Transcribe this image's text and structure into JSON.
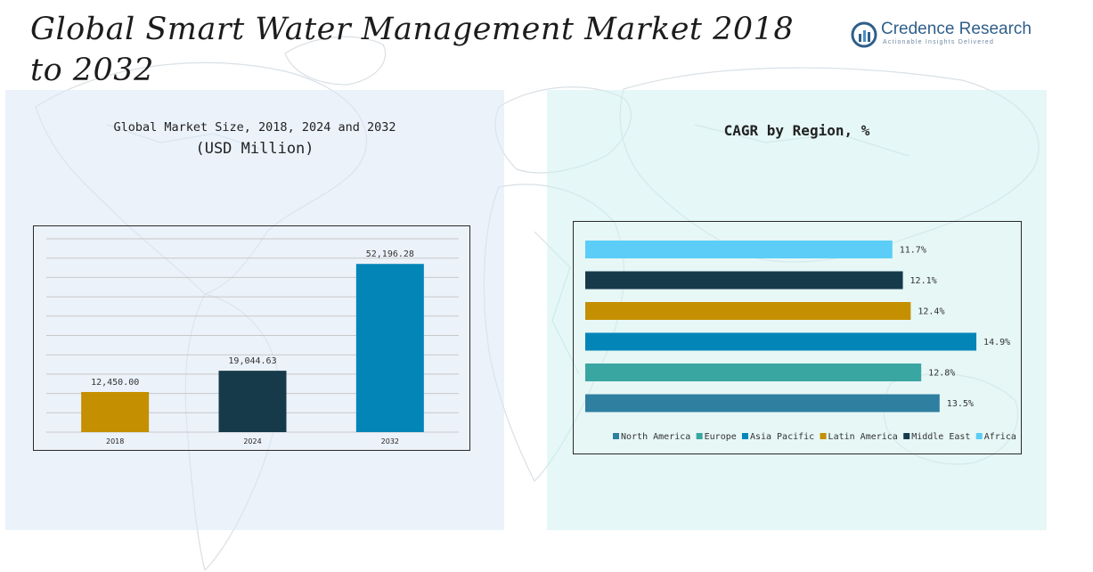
{
  "header": {
    "title": "Global Smart Water Management Market 2018 to 2032",
    "brand_name": "Credence Research",
    "brand_tagline": "Actionable Insights Delivered"
  },
  "left_panel": {
    "title": "Global Market Size, 2018, 2024 and 2032",
    "subtitle": "(USD Million)"
  },
  "right_panel": {
    "title": "CAGR by Region, %"
  },
  "colors": {
    "gold": "#c48f00",
    "navy": "#173a4a",
    "blue": "#0485b8",
    "teal": "#3aa6a2",
    "steel": "#2e7fa0",
    "sky": "#5bcdf7",
    "brand": "#2f5f8a"
  },
  "chart_data": [
    {
      "type": "bar",
      "title": "Global Market Size, 2018, 2024 and 2032",
      "subtitle": "(USD Million)",
      "categories": [
        "2018",
        "2024",
        "2032"
      ],
      "values": [
        12450.0,
        19044.63,
        52196.28
      ],
      "value_labels": [
        "12,450.00",
        "19,044.63",
        "52,196.28"
      ],
      "bar_colors": [
        "#c48f00",
        "#173a4a",
        "#0485b8"
      ],
      "ylim": [
        0,
        60000
      ],
      "grid": true
    },
    {
      "type": "bar",
      "orientation": "horizontal",
      "title": "CAGR by Region, %",
      "categories": [
        "North America",
        "Europe",
        "Asia Pacific",
        "Latin America",
        "Middle East",
        "Africa"
      ],
      "values": [
        13.5,
        12.8,
        14.9,
        12.4,
        12.1,
        11.7
      ],
      "value_labels": [
        "13.5%",
        "12.8%",
        "14.9%",
        "12.4%",
        "12.1%",
        "11.7%"
      ],
      "bar_colors": [
        "#2e7fa0",
        "#3aa6a2",
        "#0485b8",
        "#c48f00",
        "#173a4a",
        "#5bcdf7"
      ],
      "xlim": [
        0,
        15
      ],
      "legend_position": "bottom"
    }
  ]
}
